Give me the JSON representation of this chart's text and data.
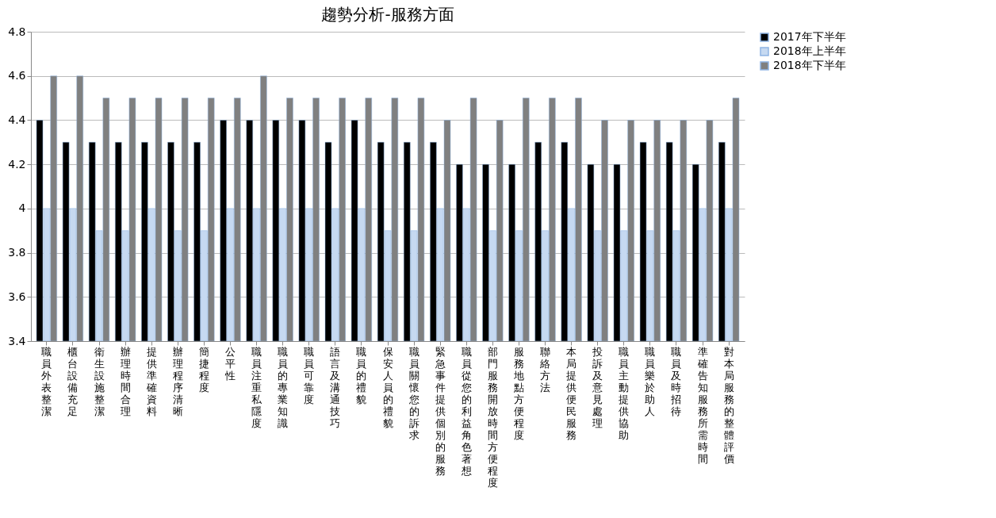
{
  "chart_data": {
    "type": "bar",
    "title": "趨勢分析-服務方面",
    "categories": [
      "職員外表整潔",
      "櫃台設備充足",
      "衛生設施整潔",
      "辦理時間合理",
      "提供準確資料",
      "辦理程序清晰",
      "簡捷程度",
      "公平性",
      "職員注重私隱度",
      "職員的專業知識",
      "職員可靠度",
      "語言及溝通技巧",
      "職員的禮貌",
      "保安人員的禮貌",
      "職員關懷您的訴求",
      "緊急事件提供個別的服務",
      "職員從您的利益角色著想",
      "部門服務開放時間方便程度",
      "服務地點方便程度",
      "聯絡方法",
      "本局提供便民服務",
      "投訴及意見處理",
      "職員主動提供協助",
      "職員樂於助人",
      "職員及時招待",
      "準確告知服務所需時間",
      "對本局服務的整體評價"
    ],
    "series": [
      {
        "name": "2017年下半年",
        "color": "#000000",
        "values": [
          4.4,
          4.3,
          4.3,
          4.3,
          4.3,
          4.3,
          4.3,
          4.4,
          4.4,
          4.4,
          4.4,
          4.3,
          4.4,
          4.3,
          4.3,
          4.3,
          4.2,
          4.2,
          4.2,
          4.3,
          4.3,
          4.2,
          4.2,
          4.3,
          4.3,
          4.2,
          4.3
        ]
      },
      {
        "name": "2018年上半年",
        "color": "#c6d9f1",
        "values": [
          4,
          4,
          3.9,
          3.9,
          4,
          3.9,
          3.9,
          4,
          4,
          4,
          4,
          4,
          4,
          3.9,
          3.9,
          4,
          4,
          3.9,
          3.9,
          3.9,
          4,
          3.9,
          3.9,
          3.9,
          3.9,
          4,
          4
        ]
      },
      {
        "name": "2018年下半年",
        "color": "#808080",
        "values": [
          4.6,
          4.6,
          4.5,
          4.5,
          4.5,
          4.5,
          4.5,
          4.5,
          4.6,
          4.5,
          4.5,
          4.5,
          4.5,
          4.5,
          4.5,
          4.4,
          4.5,
          4.4,
          4.5,
          4.5,
          4.5,
          4.4,
          4.4,
          4.4,
          4.4,
          4.4,
          4.5
        ]
      }
    ],
    "ylim": [
      3.4,
      4.8
    ],
    "yticks": [
      3.4,
      3.6,
      3.8,
      4,
      4.2,
      4.4,
      4.6,
      4.8
    ],
    "grid": "y",
    "legend": "right"
  }
}
